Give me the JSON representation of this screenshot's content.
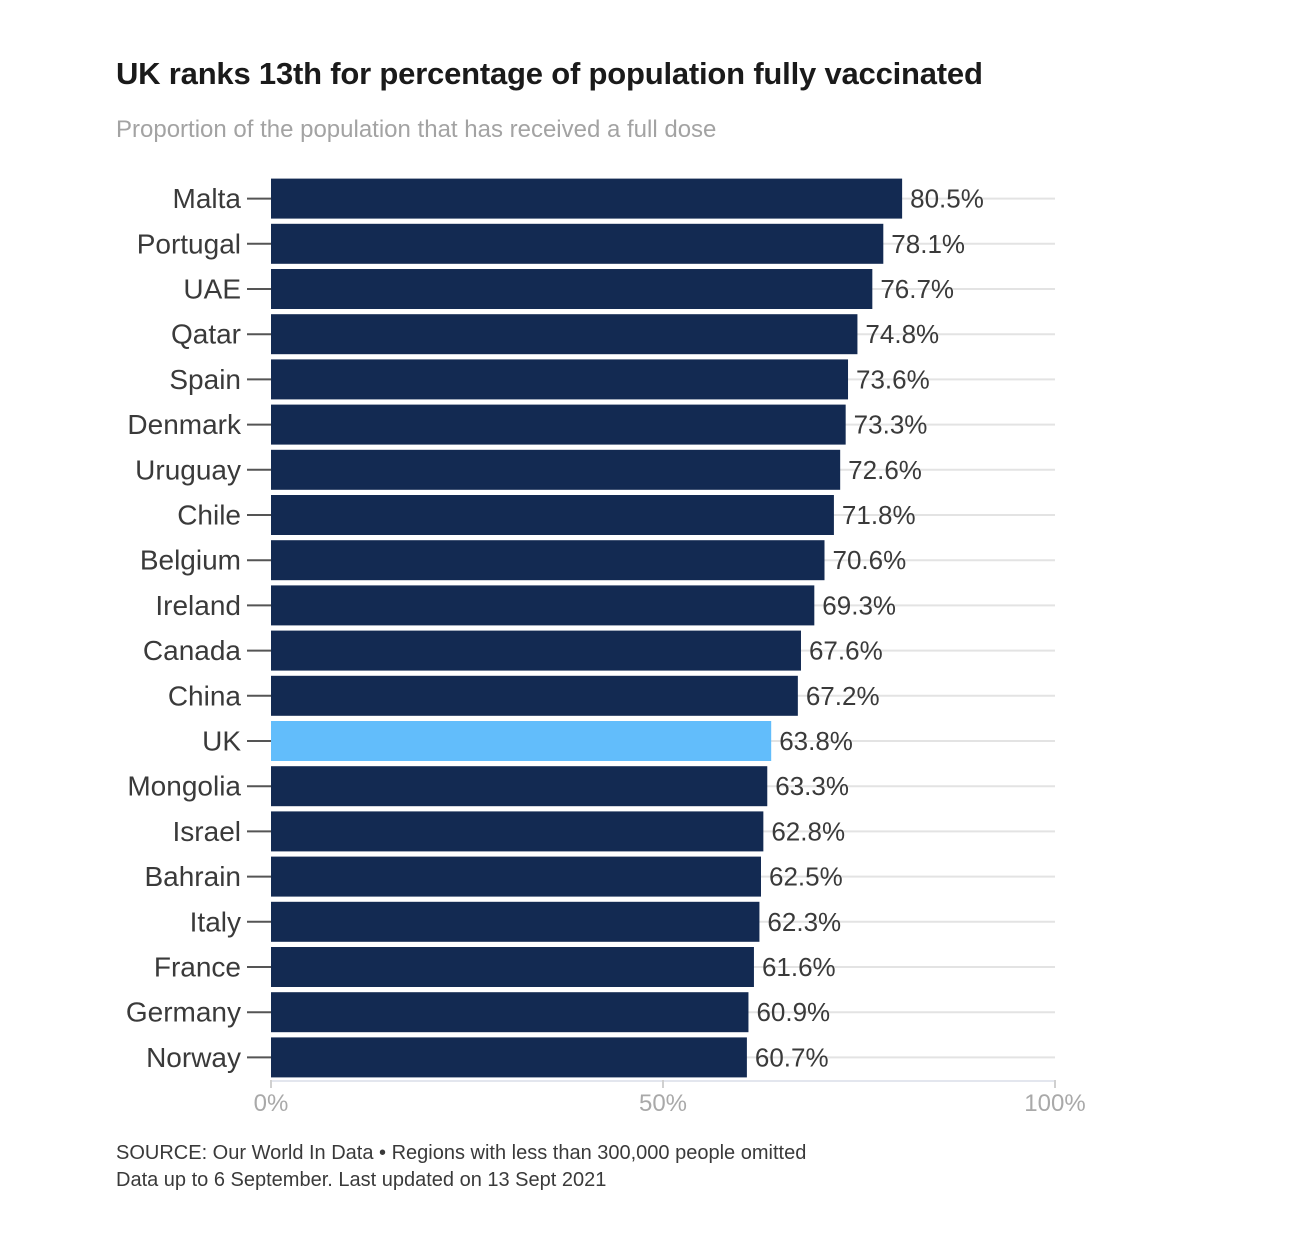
{
  "title": "UK ranks 13th for percentage of population fully vaccinated",
  "subtitle": "Proportion of the population that has received a full dose",
  "footer": {
    "source": "SOURCE: Our World In Data • Regions with less than 300,000 people omitted",
    "note": "Data up to 6 September. Last updated on 13 Sept 2021"
  },
  "colors": {
    "bar": "#132a52",
    "highlight": "#62bdfb",
    "grid": "#e3e3e3",
    "axis_text": "#a9a9a9",
    "label_text": "#3a3a3a"
  },
  "chart_data": {
    "type": "bar",
    "orientation": "horizontal",
    "title": "UK ranks 13th for percentage of population fully vaccinated",
    "subtitle": "Proportion of the population that has received a full dose",
    "categories": [
      "Malta",
      "Portugal",
      "UAE",
      "Qatar",
      "Spain",
      "Denmark",
      "Uruguay",
      "Chile",
      "Belgium",
      "Ireland",
      "Canada",
      "China",
      "UK",
      "Mongolia",
      "Israel",
      "Bahrain",
      "Italy",
      "France",
      "Germany",
      "Norway"
    ],
    "values": [
      80.5,
      78.1,
      76.7,
      74.8,
      73.6,
      73.3,
      72.6,
      71.8,
      70.6,
      69.3,
      67.6,
      67.2,
      63.8,
      63.3,
      62.8,
      62.5,
      62.3,
      61.6,
      60.9,
      60.7
    ],
    "value_labels": [
      "80.5%",
      "78.1%",
      "76.7%",
      "74.8%",
      "73.6%",
      "73.3%",
      "72.6%",
      "71.8%",
      "70.6%",
      "69.3%",
      "67.6%",
      "67.2%",
      "63.8%",
      "63.3%",
      "62.8%",
      "62.5%",
      "62.3%",
      "61.6%",
      "60.9%",
      "60.7%"
    ],
    "highlight": "UK",
    "xlim": [
      0,
      100
    ],
    "x_ticks": [
      0,
      50,
      100
    ],
    "x_tick_labels": [
      "0%",
      "50%",
      "100%"
    ],
    "grid": true
  }
}
